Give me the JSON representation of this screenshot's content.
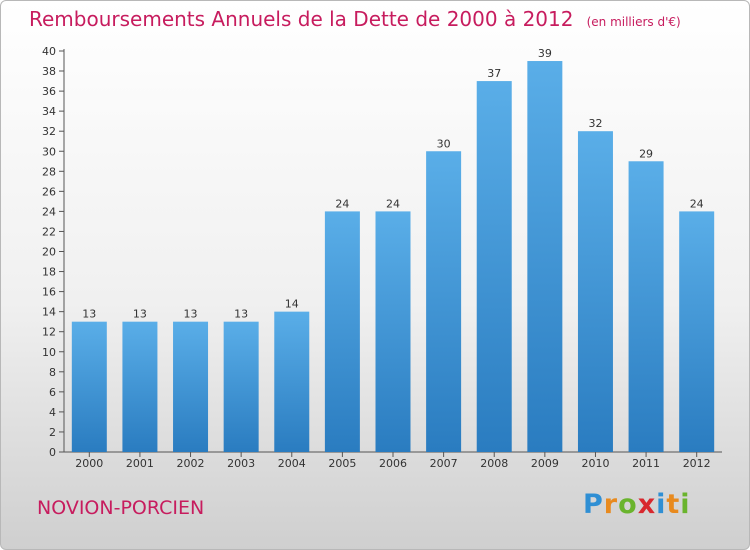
{
  "header": {
    "title": "Remboursements Annuels de la Dette de 2000 à 2012",
    "subtitle": "(en milliers d'€)"
  },
  "footer": {
    "commune": "NOVION-PORCIEN",
    "logo_text": "Proxiti",
    "logo_letters": [
      {
        "ch": "P",
        "color": "#2f8fd4"
      },
      {
        "ch": "r",
        "color": "#e88a1e"
      },
      {
        "ch": "o",
        "color": "#6ab42d"
      },
      {
        "ch": "x",
        "color": "#d8282e"
      },
      {
        "ch": "i",
        "color": "#2f8fd4"
      },
      {
        "ch": "t",
        "color": "#e88a1e"
      },
      {
        "ch": "i",
        "color": "#6ab42d"
      }
    ]
  },
  "chart_data": {
    "type": "bar",
    "title": "Remboursements Annuels de la Dette de 2000 à 2012",
    "subtitle": "(en milliers d'€)",
    "xlabel": "",
    "ylabel": "",
    "categories": [
      "2000",
      "2001",
      "2002",
      "2003",
      "2004",
      "2005",
      "2006",
      "2007",
      "2008",
      "2009",
      "2010",
      "2011",
      "2012"
    ],
    "values": [
      13,
      13,
      13,
      13,
      14,
      24,
      24,
      30,
      37,
      39,
      32,
      29,
      24
    ],
    "ylim": [
      0,
      40
    ],
    "ytick_step": 2,
    "grid": false,
    "colors": {
      "bar_top": "#5aaee8",
      "bar_bottom": "#2a7cc0",
      "axis": "#555555",
      "text": "#333333",
      "accent": "#c71c5e"
    }
  }
}
